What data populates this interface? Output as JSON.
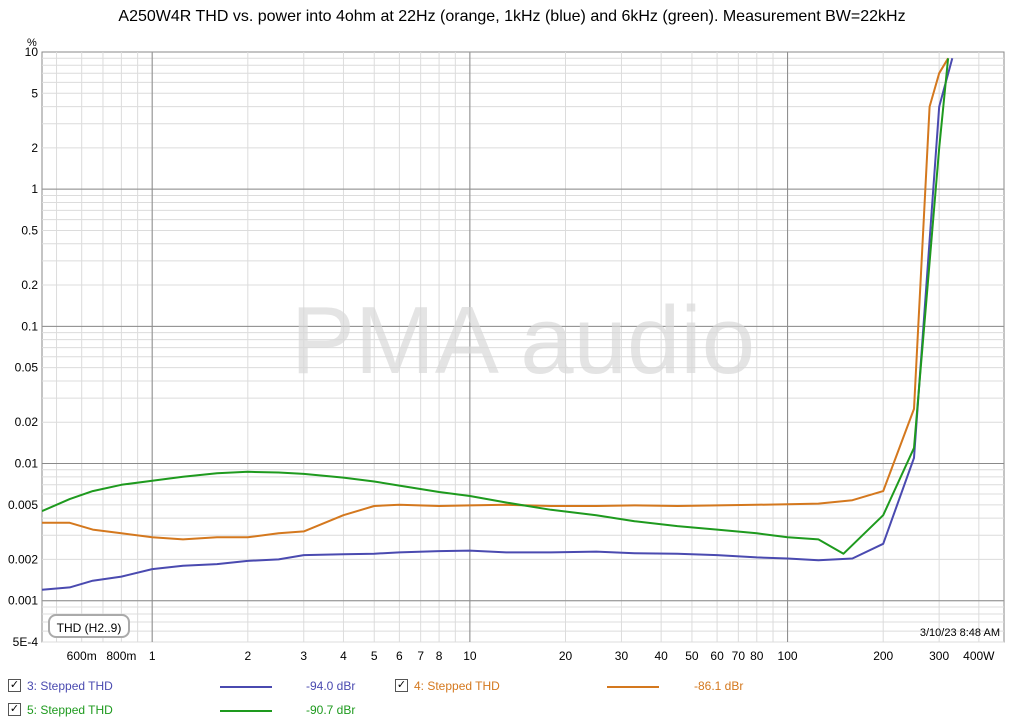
{
  "chart_data": {
    "type": "line",
    "title": "A250W4R THD vs. power into 4ohm at 22Hz (orange, 1kHz (blue) and 6kHz (green). Measurement BW=22kHz",
    "ylabel": "%",
    "xscale": "log",
    "yscale": "log",
    "xlim": [
      0.45,
      480
    ],
    "ylim": [
      0.0005,
      10
    ],
    "grid": true,
    "watermark": "PMA audio",
    "x_ticks": [
      {
        "v": 0.6,
        "label": "600m"
      },
      {
        "v": 0.8,
        "label": "800m"
      },
      {
        "v": 1,
        "label": "1"
      },
      {
        "v": 2,
        "label": "2"
      },
      {
        "v": 3,
        "label": "3"
      },
      {
        "v": 4,
        "label": "4"
      },
      {
        "v": 5,
        "label": "5"
      },
      {
        "v": 6,
        "label": "6"
      },
      {
        "v": 7,
        "label": "7"
      },
      {
        "v": 8,
        "label": "8"
      },
      {
        "v": 10,
        "label": "10"
      },
      {
        "v": 20,
        "label": "20"
      },
      {
        "v": 30,
        "label": "30"
      },
      {
        "v": 40,
        "label": "40"
      },
      {
        "v": 50,
        "label": "50"
      },
      {
        "v": 60,
        "label": "60"
      },
      {
        "v": 70,
        "label": "70"
      },
      {
        "v": 80,
        "label": "80"
      },
      {
        "v": 100,
        "label": "100"
      },
      {
        "v": 200,
        "label": "200"
      },
      {
        "v": 300,
        "label": "300"
      },
      {
        "v": 400,
        "label": "400W"
      }
    ],
    "y_ticks": [
      {
        "v": 10,
        "label": "10"
      },
      {
        "v": 5,
        "label": "5"
      },
      {
        "v": 2,
        "label": "2"
      },
      {
        "v": 1,
        "label": "1"
      },
      {
        "v": 0.5,
        "label": "0.5"
      },
      {
        "v": 0.2,
        "label": "0.2"
      },
      {
        "v": 0.1,
        "label": "0.1"
      },
      {
        "v": 0.05,
        "label": "0.05"
      },
      {
        "v": 0.02,
        "label": "0.02"
      },
      {
        "v": 0.01,
        "label": "0.01"
      },
      {
        "v": 0.005,
        "label": "0.005"
      },
      {
        "v": 0.002,
        "label": "0.002"
      },
      {
        "v": 0.001,
        "label": "0.001"
      },
      {
        "v": 0.0005,
        "label": "5E-4"
      }
    ],
    "series": [
      {
        "name": "3: Stepped THD",
        "color": "#4a4ab0",
        "value": "-94.0 dBr",
        "x": [
          0.45,
          0.55,
          0.65,
          0.8,
          1.0,
          1.25,
          1.6,
          2.0,
          2.5,
          3.0,
          4.0,
          5.0,
          6.0,
          8.0,
          10,
          13,
          18,
          25,
          33,
          45,
          60,
          80,
          100,
          125,
          160,
          200,
          250,
          300,
          330
        ],
        "y": [
          0.0012,
          0.00125,
          0.0014,
          0.0015,
          0.0017,
          0.0018,
          0.00185,
          0.00195,
          0.002,
          0.00215,
          0.00218,
          0.0022,
          0.00225,
          0.0023,
          0.00232,
          0.00225,
          0.00225,
          0.00228,
          0.00222,
          0.0022,
          0.00215,
          0.00207,
          0.00203,
          0.00197,
          0.00203,
          0.0026,
          0.011,
          4.0,
          9.0
        ]
      },
      {
        "name": "4: Stepped THD",
        "color": "#d4781e",
        "value": "-86.1 dBr",
        "x": [
          0.45,
          0.55,
          0.65,
          0.8,
          1.0,
          1.25,
          1.6,
          2.0,
          2.5,
          3.0,
          4.0,
          5.0,
          6.0,
          8.0,
          10,
          13,
          18,
          25,
          33,
          45,
          60,
          80,
          100,
          125,
          160,
          200,
          250,
          280,
          300,
          320
        ],
        "y": [
          0.0037,
          0.0037,
          0.0033,
          0.0031,
          0.0029,
          0.0028,
          0.0029,
          0.0029,
          0.0031,
          0.0032,
          0.0042,
          0.0049,
          0.005,
          0.0049,
          0.00495,
          0.005,
          0.0049,
          0.0049,
          0.00495,
          0.0049,
          0.00495,
          0.005,
          0.00505,
          0.0051,
          0.0054,
          0.0063,
          0.025,
          4.0,
          7.0,
          9.0
        ]
      },
      {
        "name": "5: Stepped THD",
        "color": "#1e9a1e",
        "value": "-90.7 dBr",
        "x": [
          0.45,
          0.55,
          0.65,
          0.8,
          1.0,
          1.25,
          1.6,
          2.0,
          2.5,
          3.0,
          4.0,
          5.0,
          6.0,
          8.0,
          10,
          13,
          18,
          25,
          33,
          45,
          60,
          80,
          100,
          125,
          150,
          200,
          250,
          300,
          320
        ],
        "y": [
          0.0045,
          0.0055,
          0.0063,
          0.007,
          0.0075,
          0.008,
          0.0085,
          0.0087,
          0.0086,
          0.0084,
          0.0079,
          0.0074,
          0.0069,
          0.0062,
          0.0058,
          0.0052,
          0.0046,
          0.0042,
          0.0038,
          0.0035,
          0.0033,
          0.0031,
          0.0029,
          0.0028,
          0.0022,
          0.0042,
          0.013,
          2.0,
          9.0
        ]
      }
    ]
  },
  "badge": "THD (H2..9)",
  "timestamp": "3/10/23 8:48 AM",
  "legend_check": "✓"
}
